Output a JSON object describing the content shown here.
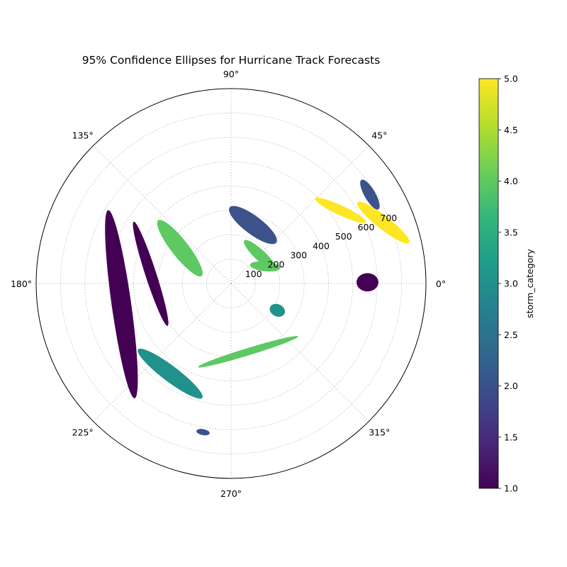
{
  "chart_data": {
    "type": "scatter",
    "title": "95% Confidence Ellipses for Hurricane Track Forecasts",
    "projection": "polar",
    "grid": true,
    "theta_ticks": [
      "0°",
      "45°",
      "90°",
      "135°",
      "180°",
      "225°",
      "270°",
      "315°"
    ],
    "r_ticks": [
      "100",
      "200",
      "300",
      "400",
      "500",
      "600",
      "700"
    ],
    "r_max": 800,
    "colorbar": {
      "label": "storm_category",
      "min": 1.0,
      "max": 5.0,
      "ticks": [
        "1.0",
        "1.5",
        "2.0",
        "2.5",
        "3.0",
        "3.5",
        "4.0",
        "4.5",
        "5.0"
      ],
      "colormap": "viridis"
    },
    "colors": {
      "1": "#440154",
      "2": "#3b528b",
      "3": "#21918c",
      "4": "#5ec962",
      "5": "#fde725"
    },
    "ellipses": [
      {
        "center_x": 450,
        "center_y": 300,
        "width": 230,
        "height": 40,
        "angle": -25,
        "category": 5
      },
      {
        "center_x": 625,
        "center_y": 250,
        "width": 270,
        "height": 55,
        "angle": -38,
        "category": 5
      },
      {
        "center_x": 560,
        "center_y": 5,
        "width": 90,
        "height": 75,
        "angle": 0,
        "category": 1
      },
      {
        "center_x": 570,
        "center_y": 365,
        "width": 140,
        "height": 45,
        "angle": -60,
        "category": 2
      },
      {
        "center_x": 90,
        "center_y": 240,
        "width": 240,
        "height": 75,
        "angle": -37,
        "category": 2
      },
      {
        "center_x": 120,
        "center_y": 115,
        "width": 180,
        "height": 45,
        "angle": -43,
        "category": 4
      },
      {
        "center_x": 140,
        "center_y": 70,
        "width": 125,
        "height": 40,
        "angle": -6,
        "category": 4
      },
      {
        "center_x": -210,
        "center_y": 145,
        "width": 290,
        "height": 70,
        "angle": -52,
        "category": 4
      },
      {
        "center_x": -330,
        "center_y": 40,
        "width": 450,
        "height": 45,
        "angle": -72,
        "category": 1
      },
      {
        "center_x": -450,
        "center_y": -85,
        "width": 780,
        "height": 80,
        "angle": -82,
        "category": 1
      },
      {
        "center_x": 190,
        "center_y": -110,
        "width": 65,
        "height": 50,
        "angle": -25,
        "category": 3
      },
      {
        "center_x": 70,
        "center_y": -280,
        "width": 430,
        "height": 30,
        "angle": 17,
        "category": 4
      },
      {
        "center_x": -250,
        "center_y": -370,
        "width": 330,
        "height": 65,
        "angle": -37,
        "category": 3
      },
      {
        "center_x": -115,
        "center_y": -610,
        "width": 55,
        "height": 25,
        "angle": -10,
        "category": 2
      }
    ]
  }
}
